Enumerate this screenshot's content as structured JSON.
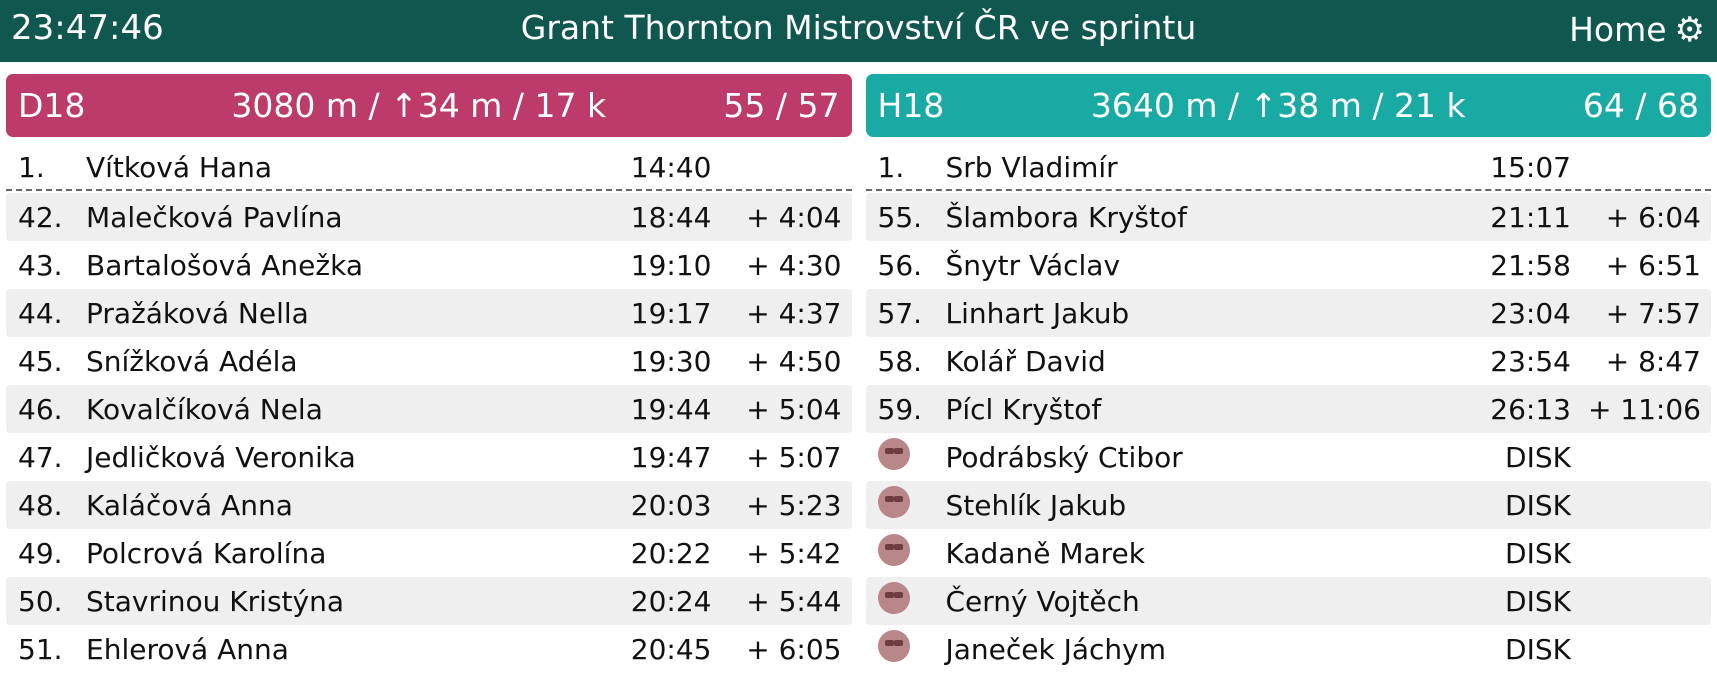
{
  "header": {
    "clock": "23:47:46",
    "title": "Grant Thornton Mistrovství ČR ve sprintu",
    "home_label": "Home",
    "settings_icon": "gear-icon"
  },
  "panels": [
    {
      "category": "D18",
      "course": "3080 m / ↑34 m / 17 k",
      "count": "55 / 57",
      "color": "#bd3b68",
      "leader": {
        "rank": "1.",
        "name": "Vítková Hana",
        "time": "14:40",
        "diff": ""
      },
      "rows": [
        {
          "rank": "42.",
          "name": "Malečková Pavlína",
          "time": "18:44",
          "diff": "+ 4:04"
        },
        {
          "rank": "43.",
          "name": "Bartalošová Anežka",
          "time": "19:10",
          "diff": "+ 4:30"
        },
        {
          "rank": "44.",
          "name": "Pražáková Nella",
          "time": "19:17",
          "diff": "+ 4:37"
        },
        {
          "rank": "45.",
          "name": "Snížková Adéla",
          "time": "19:30",
          "diff": "+ 4:50"
        },
        {
          "rank": "46.",
          "name": "Kovalčíková Nela",
          "time": "19:44",
          "diff": "+ 5:04"
        },
        {
          "rank": "47.",
          "name": "Jedličková Veronika",
          "time": "19:47",
          "diff": "+ 5:07"
        },
        {
          "rank": "48.",
          "name": "Kaláčová Anna",
          "time": "20:03",
          "diff": "+ 5:23"
        },
        {
          "rank": "49.",
          "name": "Polcrová Karolína",
          "time": "20:22",
          "diff": "+ 5:42"
        },
        {
          "rank": "50.",
          "name": "Stavrinou Kristýna",
          "time": "20:24",
          "diff": "+ 5:44"
        },
        {
          "rank": "51.",
          "name": "Ehlerová Anna",
          "time": "20:45",
          "diff": "+ 6:05"
        }
      ]
    },
    {
      "category": "H18",
      "course": "3640 m / ↑38 m / 21 k",
      "count": "64 / 68",
      "color": "#19aaa3",
      "leader": {
        "rank": "1.",
        "name": "Srb Vladimír",
        "time": "15:07",
        "diff": ""
      },
      "rows": [
        {
          "rank": "55.",
          "name": "Šlambora Kryštof",
          "time": "21:11",
          "diff": "+ 6:04"
        },
        {
          "rank": "56.",
          "name": "Šnytr Václav",
          "time": "21:58",
          "diff": "+ 6:51"
        },
        {
          "rank": "57.",
          "name": "Linhart Jakub",
          "time": "23:04",
          "diff": "+ 7:57"
        },
        {
          "rank": "58.",
          "name": "Kolář David",
          "time": "23:54",
          "diff": "+ 8:47"
        },
        {
          "rank": "59.",
          "name": "Pícl Kryštof",
          "time": "26:13",
          "diff": "+ 11:06"
        },
        {
          "rank": "",
          "name": "Podrábský Ctibor",
          "time": "DISK",
          "diff": "",
          "icon": "disqualified-icon"
        },
        {
          "rank": "",
          "name": "Stehlík Jakub",
          "time": "DISK",
          "diff": "",
          "icon": "disqualified-icon"
        },
        {
          "rank": "",
          "name": "Kadaně Marek",
          "time": "DISK",
          "diff": "",
          "icon": "disqualified-icon"
        },
        {
          "rank": "",
          "name": "Černý Vojtěch",
          "time": "DISK",
          "diff": "",
          "icon": "disqualified-icon"
        },
        {
          "rank": "",
          "name": "Janeček Jáchym",
          "time": "DISK",
          "diff": "",
          "icon": "disqualified-icon"
        }
      ]
    }
  ]
}
